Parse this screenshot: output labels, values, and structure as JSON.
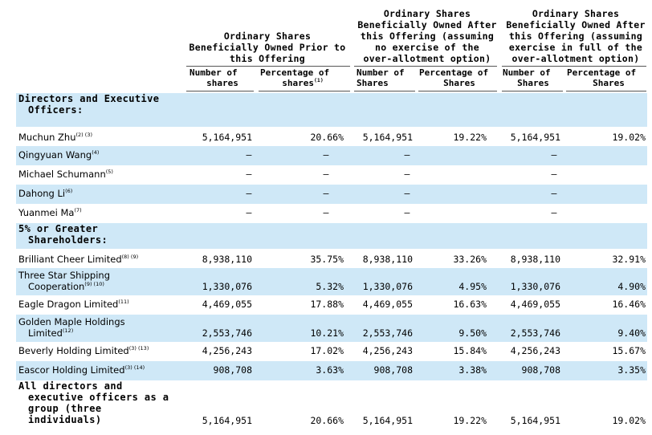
{
  "group_headers": [
    "Ordinary Shares Beneficially Owned Prior to this Offering",
    "Ordinary Shares Beneficially Owned After this Offering (assuming no exercise of the over-allotment option)",
    "Ordinary Shares Beneficially Owned After this Offering (assuming exercise in full of the over-allotment option)"
  ],
  "group_header_lines": [
    [
      "Ordinary  Shares",
      "Beneficially  Owned  Prior  to",
      "this  Offering"
    ],
    [
      "Ordinary  Shares",
      "Beneficially  Owned  After",
      "this  Offering (assuming",
      "no exercise of the",
      "over-allotment option)"
    ],
    [
      "Ordinary  Shares",
      "Beneficially  Owned  After",
      "this  Offering (assuming",
      "exercise in full of the",
      "over-allotment option)"
    ]
  ],
  "column_headers": {
    "c1": [
      "Number  of",
      "shares"
    ],
    "c2": [
      "Percentage  of",
      "shares"
    ],
    "c2_sup": "(1)",
    "c3": [
      "Number  of",
      "Shares"
    ],
    "c4": [
      "Percentage  of",
      "Shares"
    ],
    "c5": [
      "Number  of",
      "Shares"
    ],
    "c6": [
      "Percentage  of",
      "Shares"
    ]
  },
  "sections": {
    "directors": [
      "Directors and Executive",
      "Officers:"
    ],
    "shareholders": [
      "5% or Greater",
      "Shareholders:"
    ],
    "all": [
      "All directors and",
      "executive officers as a",
      "group (three",
      "individuals)"
    ]
  },
  "rows": [
    {
      "name": [
        "Muchun Zhu"
      ],
      "sup": "(2) (3)",
      "v": [
        "5,164,951",
        "20.66%",
        "5,164,951",
        "19.22%",
        "5,164,951",
        "19.02%"
      ]
    },
    {
      "name": [
        "Qingyuan Wang"
      ],
      "sup": "(4)",
      "v": [
        "—",
        "—",
        "—",
        "",
        "—",
        ""
      ]
    },
    {
      "name": [
        "Michael Schumann"
      ],
      "sup": "(5)",
      "v": [
        "—",
        "—",
        "—",
        "",
        "—",
        ""
      ]
    },
    {
      "name": [
        "Dahong Li"
      ],
      "sup": "(6)",
      "v": [
        "—",
        "—",
        "—",
        "",
        "—",
        ""
      ]
    },
    {
      "name": [
        "Yuanmei Ma"
      ],
      "sup": "(7)",
      "v": [
        "—",
        "—",
        "—",
        "",
        "—",
        ""
      ]
    },
    {
      "name": [
        "Brilliant Cheer Limited"
      ],
      "sup": "(8) (9)",
      "v": [
        "8,938,110",
        "35.75%",
        "8,938,110",
        "33.26%",
        "8,938,110",
        "32.91%"
      ]
    },
    {
      "name": [
        "Three Star Shipping",
        "Cooperation"
      ],
      "sup": "(9) (10)",
      "v": [
        "1,330,076",
        "5.32%",
        "1,330,076",
        "4.95%",
        "1,330,076",
        "4.90%"
      ]
    },
    {
      "name": [
        "Eagle Dragon Limited"
      ],
      "sup": "(11)",
      "v": [
        "4,469,055",
        "17.88%",
        "4,469,055",
        "16.63%",
        "4,469,055",
        "16.46%"
      ]
    },
    {
      "name": [
        "Golden Maple Holdings",
        "Limited"
      ],
      "sup": "(12)",
      "v": [
        "2,553,746",
        "10.21%",
        "2,553,746",
        "9.50%",
        "2,553,746",
        "9.40%"
      ]
    },
    {
      "name": [
        "Beverly  Holding  Limited"
      ],
      "sup": "(3) (13)",
      "v": [
        "4,256,243",
        "17.02%",
        "4,256,243",
        "15.84%",
        "4,256,243",
        "15.67%"
      ]
    },
    {
      "name": [
        "Eascor Holding Limited"
      ],
      "sup": "(3) (14)",
      "v": [
        "908,708",
        "3.63%",
        "908,708",
        "3.38%",
        "908,708",
        "3.35%"
      ]
    }
  ],
  "all_row_values": [
    "5,164,951",
    "20.66%",
    "5,164,951",
    "19.22%",
    "5,164,951",
    "19.02%"
  ]
}
